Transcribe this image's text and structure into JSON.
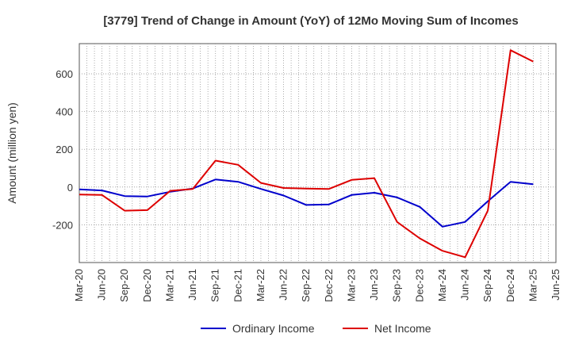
{
  "chart_data": {
    "type": "line",
    "title": "[3779]  Trend of Change in Amount (YoY) of 12Mo Moving Sum of Incomes",
    "xlabel": "",
    "ylabel": "Amount (million yen)",
    "ylim": [
      -400,
      760
    ],
    "yticks": [
      -200,
      0,
      200,
      400,
      600
    ],
    "grid": true,
    "legend_position": "bottom",
    "categories": [
      "Mar-20",
      "Jun-20",
      "Sep-20",
      "Dec-20",
      "Mar-21",
      "Jun-21",
      "Sep-21",
      "Dec-21",
      "Mar-22",
      "Jun-22",
      "Sep-22",
      "Dec-22",
      "Mar-23",
      "Jun-23",
      "Sep-23",
      "Dec-23",
      "Mar-24",
      "Jun-24",
      "Sep-24",
      "Dec-24",
      "Mar-25",
      "Jun-25"
    ],
    "series": [
      {
        "name": "Ordinary Income",
        "color": "#0000cc",
        "values": [
          -12,
          -18,
          -48,
          -50,
          -25,
          -8,
          40,
          28,
          -10,
          -45,
          -95,
          -92,
          -42,
          -30,
          -55,
          -105,
          -210,
          -185,
          -75,
          28,
          15,
          null
        ]
      },
      {
        "name": "Net Income",
        "color": "#dd0000",
        "values": [
          -40,
          -42,
          -125,
          -122,
          -20,
          -10,
          140,
          118,
          22,
          -5,
          -8,
          -10,
          38,
          47,
          -185,
          -272,
          -338,
          -372,
          -125,
          725,
          665,
          null
        ]
      }
    ]
  }
}
